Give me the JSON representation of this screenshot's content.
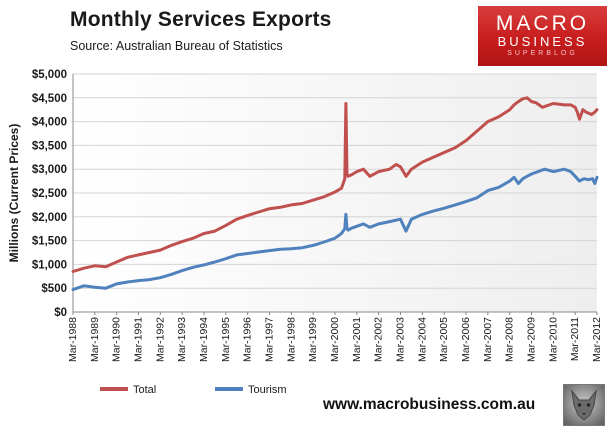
{
  "header": {
    "title": "Monthly  Services Exports",
    "source": "Source:  Australian Bureau of Statistics"
  },
  "logo": {
    "line1": "MACRO",
    "line2": "BUSINESS",
    "line3": "SUPERBLOG"
  },
  "footer": {
    "url": "www.macrobusiness.com.au"
  },
  "colors": {
    "total": "#c0504d",
    "tourism": "#4f81bd",
    "plot_bg": "#eeeeee"
  },
  "chart_data": {
    "type": "line",
    "title": "Monthly  Services Exports",
    "ylabel": "Millions (Current Prices)",
    "xlabel": "",
    "ylim": [
      0,
      5000
    ],
    "yticks": [
      0,
      500,
      1000,
      1500,
      2000,
      2500,
      3000,
      3500,
      4000,
      4500,
      5000
    ],
    "ytick_labels": [
      "$0",
      "$500",
      "$1,000",
      "$1,500",
      "$2,000",
      "$2,500",
      "$3,000",
      "$3,500",
      "$4,000",
      "$4,500",
      "$5,000"
    ],
    "xrange": [
      1988.0,
      2012.0
    ],
    "xtick_labels": [
      "Mar-1988",
      "Mar-1989",
      "Mar-1990",
      "Mar-1991",
      "Mar-1992",
      "Mar-1993",
      "Mar-1994",
      "Mar-1995",
      "Mar-1996",
      "Mar-1997",
      "Mar-1998",
      "Mar-1999",
      "Mar-2000",
      "Mar-2001",
      "Mar-2002",
      "Mar-2003",
      "Mar-2004",
      "Mar-2005",
      "Mar-2006",
      "Mar-2007",
      "Mar-2008",
      "Mar-2009",
      "Mar-2010",
      "Mar-2011",
      "Mar-2012"
    ],
    "legend": "bottom",
    "series": [
      {
        "name": "Total",
        "color": "#c0504d",
        "x": [
          1988.0,
          1988.5,
          1989.0,
          1989.5,
          1990.0,
          1990.5,
          1991.0,
          1991.5,
          1992.0,
          1992.5,
          1993.0,
          1993.5,
          1994.0,
          1994.5,
          1995.0,
          1995.5,
          1996.0,
          1996.5,
          1997.0,
          1997.5,
          1998.0,
          1998.5,
          1999.0,
          1999.5,
          2000.0,
          2000.3,
          2000.45,
          2000.5,
          2000.55,
          2000.6,
          2000.75,
          2001.0,
          2001.3,
          2001.6,
          2002.0,
          2002.5,
          2002.8,
          2003.0,
          2003.25,
          2003.5,
          2004.0,
          2004.5,
          2005.0,
          2005.5,
          2006.0,
          2006.5,
          2007.0,
          2007.5,
          2008.0,
          2008.2,
          2008.4,
          2008.6,
          2008.8,
          2009.0,
          2009.2,
          2009.5,
          2010.0,
          2010.5,
          2010.8,
          2011.0,
          2011.1,
          2011.2,
          2011.35,
          2011.5,
          2011.75,
          2011.9,
          2012.0
        ],
        "values": [
          850,
          920,
          970,
          950,
          1050,
          1150,
          1200,
          1250,
          1300,
          1400,
          1480,
          1550,
          1650,
          1700,
          1820,
          1950,
          2030,
          2100,
          2170,
          2200,
          2250,
          2280,
          2350,
          2420,
          2520,
          2600,
          2800,
          4380,
          2900,
          2850,
          2880,
          2950,
          3000,
          2850,
          2950,
          3000,
          3100,
          3050,
          2850,
          3000,
          3150,
          3250,
          3350,
          3450,
          3600,
          3800,
          4000,
          4100,
          4250,
          4350,
          4420,
          4480,
          4500,
          4420,
          4400,
          4300,
          4380,
          4350,
          4350,
          4300,
          4200,
          4050,
          4250,
          4200,
          4150,
          4200,
          4250
        ]
      },
      {
        "name": "Tourism",
        "color": "#4f81bd",
        "x": [
          1988.0,
          1988.5,
          1989.0,
          1989.5,
          1990.0,
          1990.5,
          1991.0,
          1991.5,
          1992.0,
          1992.5,
          1993.0,
          1993.5,
          1994.0,
          1994.5,
          1995.0,
          1995.5,
          1996.0,
          1996.5,
          1997.0,
          1997.5,
          1998.0,
          1998.5,
          1999.0,
          1999.5,
          2000.0,
          2000.3,
          2000.45,
          2000.5,
          2000.55,
          2000.6,
          2000.75,
          2001.0,
          2001.3,
          2001.6,
          2002.0,
          2002.5,
          2003.0,
          2003.25,
          2003.5,
          2004.0,
          2004.5,
          2005.0,
          2005.5,
          2006.0,
          2006.5,
          2007.0,
          2007.5,
          2008.0,
          2008.2,
          2008.4,
          2008.6,
          2008.8,
          2009.0,
          2009.3,
          2009.6,
          2010.0,
          2010.5,
          2010.8,
          2011.0,
          2011.2,
          2011.4,
          2011.6,
          2011.8,
          2011.9,
          2012.0
        ],
        "values": [
          470,
          550,
          520,
          500,
          590,
          630,
          660,
          680,
          720,
          790,
          870,
          940,
          990,
          1050,
          1120,
          1200,
          1230,
          1260,
          1290,
          1320,
          1330,
          1350,
          1400,
          1470,
          1550,
          1650,
          1750,
          2050,
          1750,
          1720,
          1760,
          1800,
          1850,
          1780,
          1850,
          1900,
          1950,
          1700,
          1950,
          2050,
          2120,
          2180,
          2250,
          2320,
          2400,
          2550,
          2620,
          2750,
          2830,
          2700,
          2800,
          2850,
          2900,
          2950,
          3000,
          2950,
          3000,
          2950,
          2850,
          2750,
          2800,
          2780,
          2800,
          2700,
          2830
        ]
      }
    ]
  }
}
